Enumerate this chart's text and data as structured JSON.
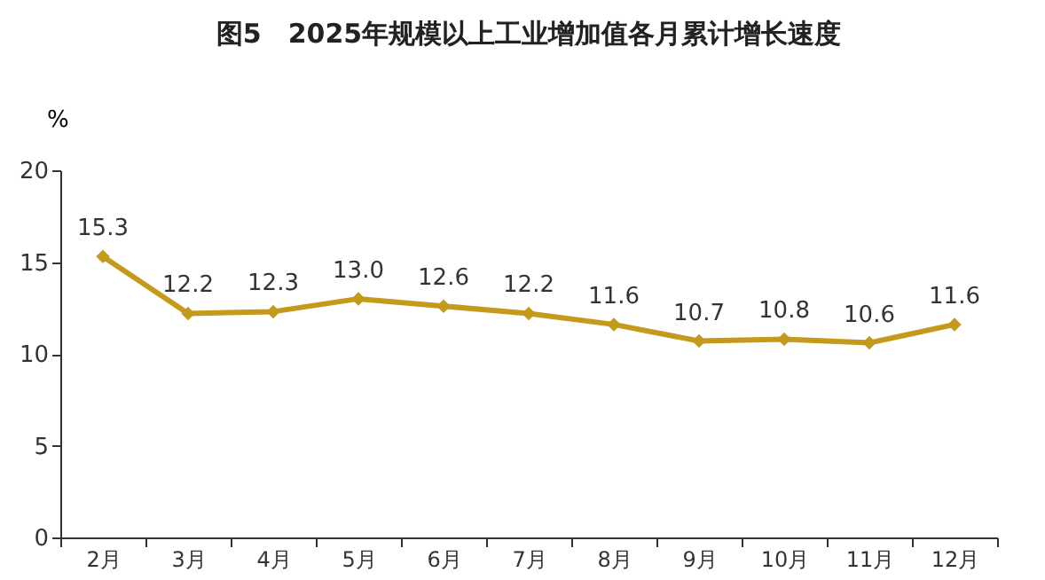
{
  "chart_data": {
    "type": "line",
    "title": "图5　2025年规模以上工业增加值各月累计增长速度",
    "ylabel": "%",
    "categories": [
      "2月",
      "3月",
      "4月",
      "5月",
      "6月",
      "7月",
      "8月",
      "9月",
      "10月",
      "11月",
      "12月"
    ],
    "series": [
      {
        "color": "#c49a1c",
        "values": [
          15.3,
          12.2,
          12.3,
          13.0,
          12.6,
          12.2,
          11.6,
          10.7,
          10.8,
          10.6,
          11.6
        ],
        "value_labels": [
          "15.3",
          "12.2",
          "12.3",
          "13.0",
          "12.6",
          "12.2",
          "11.6",
          "10.7",
          "10.8",
          "10.6",
          "11.6"
        ]
      }
    ],
    "ylim": [
      0,
      20
    ],
    "yticks": [
      0,
      5,
      10,
      15,
      20
    ],
    "grid": false,
    "legend": false,
    "marker": "diamond",
    "line_style": "solid"
  }
}
